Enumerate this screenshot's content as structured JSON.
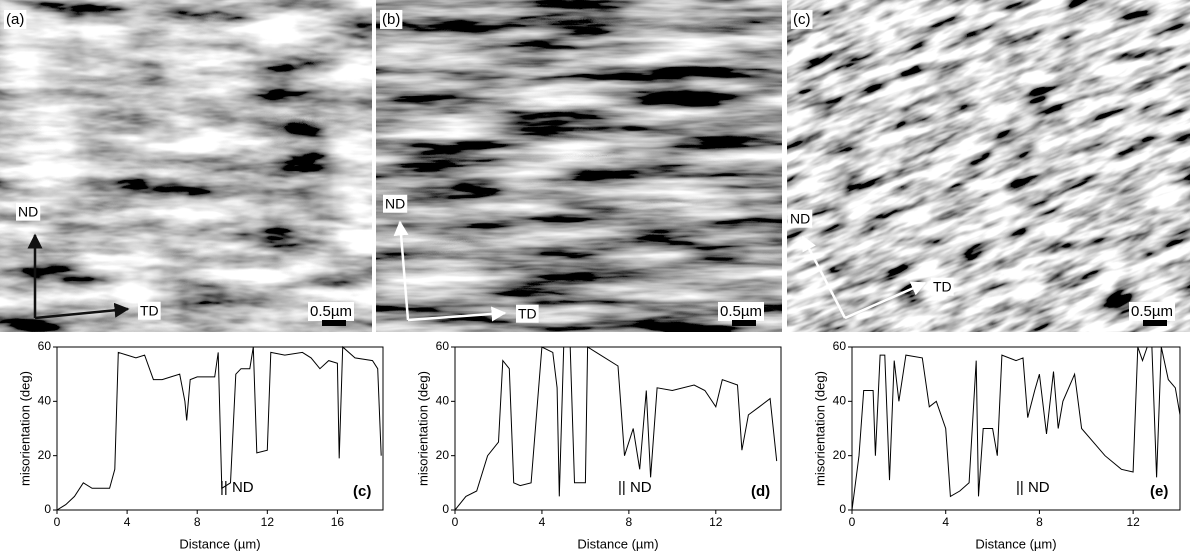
{
  "images": [
    {
      "label": "(a)",
      "axis_labels": [
        "ND",
        "TD"
      ],
      "scale_bar": "0.5µm"
    },
    {
      "label": "(b)",
      "axis_labels": [
        "ND",
        "TD"
      ],
      "scale_bar": "0.5µm"
    },
    {
      "label": "(c)",
      "axis_labels": [
        "ND",
        "TD"
      ],
      "scale_bar": "0.5µm"
    }
  ],
  "chart_data": [
    {
      "type": "line",
      "ylabel": "misorientation (deg)",
      "xlabel": "Distance (µm)",
      "annotation": "|| ND",
      "panel": "(c)",
      "xlim": [
        0,
        18.6
      ],
      "xticks": [
        0,
        4,
        8,
        12,
        16
      ],
      "ylim": [
        0,
        60
      ],
      "yticks": [
        0,
        20,
        40,
        60
      ],
      "color": "#000000",
      "x": [
        0,
        0.5,
        1,
        1.5,
        2,
        2.5,
        3,
        3.3,
        3.5,
        4,
        4.5,
        5,
        5.5,
        6,
        6.5,
        7,
        7.3,
        7.4,
        7.6,
        8,
        9,
        9.2,
        9.4,
        9.9,
        10.2,
        10.5,
        11,
        11.2,
        11.4,
        12,
        12.2,
        13,
        14,
        14.5,
        15,
        15.5,
        16,
        16.1,
        16.3,
        17,
        18,
        18.3,
        18.5
      ],
      "values": [
        0,
        2,
        5,
        10,
        8,
        8,
        8,
        15,
        58,
        57,
        56,
        57,
        48,
        48,
        49,
        50,
        40,
        33,
        48,
        49,
        49,
        58,
        8,
        10,
        50,
        52,
        52,
        60,
        21,
        22,
        58,
        57,
        58,
        56,
        52,
        55,
        54,
        19,
        60,
        56,
        55,
        52,
        20
      ]
    },
    {
      "type": "line",
      "ylabel": "misorientation (deg)",
      "xlabel": "Distance (µm)",
      "annotation": "|| ND",
      "panel": "(d)",
      "xlim": [
        0,
        15
      ],
      "xticks": [
        0,
        4,
        8,
        12
      ],
      "ylim": [
        0,
        60
      ],
      "yticks": [
        0,
        20,
        40,
        60
      ],
      "color": "#000000",
      "x": [
        0,
        0.5,
        1,
        1.5,
        2,
        2.2,
        2.5,
        2.7,
        3,
        3.5,
        4,
        4.5,
        4.7,
        4.8,
        5,
        5.3,
        5.5,
        6,
        6.1,
        6.5,
        7.5,
        7.8,
        8.2,
        8.5,
        8.8,
        9,
        9.3,
        10,
        11,
        11.5,
        12,
        12.3,
        13,
        13.2,
        13.5,
        14,
        14.5,
        14.8
      ],
      "values": [
        0,
        5,
        7,
        20,
        25,
        55,
        52,
        10,
        9,
        10,
        60,
        58,
        45,
        5,
        60,
        60,
        10,
        10,
        60,
        58,
        53,
        20,
        30,
        15,
        44,
        12,
        45,
        44,
        46,
        44,
        38,
        48,
        46,
        22,
        35,
        38,
        41,
        18
      ]
    },
    {
      "type": "line",
      "ylabel": "misorientation (deg)",
      "xlabel": "Distance (µm)",
      "annotation": "|| ND",
      "panel": "(e)",
      "xlim": [
        0,
        14
      ],
      "xticks": [
        0,
        4,
        8,
        12
      ],
      "ylim": [
        0,
        60
      ],
      "yticks": [
        0,
        20,
        40,
        60
      ],
      "color": "#000000",
      "x": [
        0,
        0.3,
        0.5,
        0.9,
        1,
        1.2,
        1.4,
        1.6,
        1.8,
        2,
        2.3,
        3,
        3.3,
        3.6,
        4,
        4.2,
        4.6,
        5,
        5.3,
        5.4,
        5.6,
        6,
        6.2,
        6.4,
        7,
        7.3,
        7.5,
        7.8,
        8,
        8.3,
        8.6,
        8.8,
        9,
        9.5,
        9.8,
        10.3,
        10.8,
        11.5,
        12,
        12.2,
        12.4,
        12.6,
        12.8,
        13,
        13.2,
        13.5,
        13.8,
        14
      ],
      "values": [
        0,
        20,
        44,
        44,
        20,
        57,
        57,
        11,
        55,
        40,
        57,
        56,
        38,
        40,
        30,
        5,
        7,
        10,
        55,
        5,
        30,
        30,
        20,
        57,
        55,
        56,
        34,
        44,
        50,
        28,
        51,
        30,
        40,
        50,
        30,
        25,
        20,
        15,
        14,
        60,
        55,
        60,
        60,
        12,
        60,
        48,
        45,
        35
      ]
    }
  ]
}
